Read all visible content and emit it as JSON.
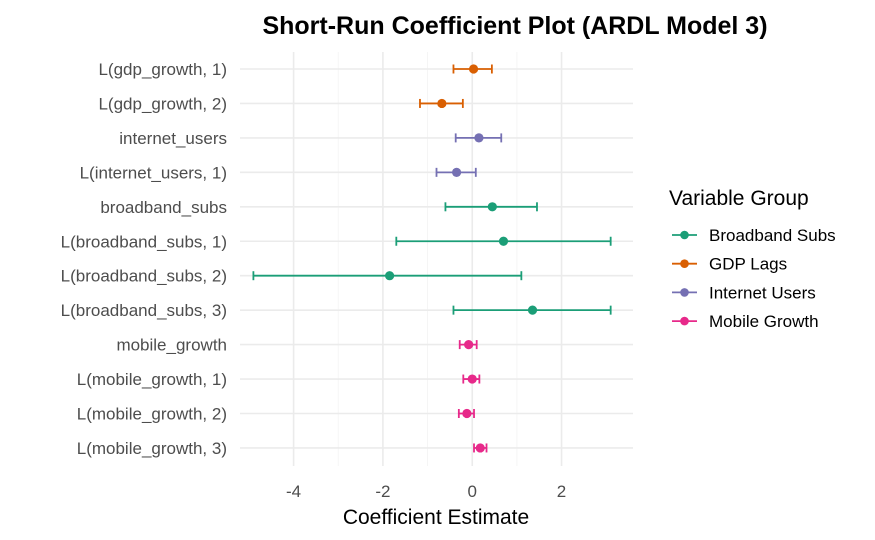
{
  "chart_data": {
    "type": "scatter",
    "title": "Short-Run Coefficient Plot (ARDL Model 3)",
    "xlabel": "Coefficient Estimate",
    "ylabel": "",
    "xlim": [
      -5.2,
      3.6
    ],
    "xticks": [
      -4,
      -2,
      0,
      2
    ],
    "xtick_labels": [
      "-4",
      "-2",
      "0",
      "2"
    ],
    "grid": true,
    "legend": {
      "title": "Variable Group",
      "position": "right",
      "entries": [
        {
          "name": "Broadband Subs",
          "color": "#1b9e77"
        },
        {
          "name": "GDP Lags",
          "color": "#d95f02"
        },
        {
          "name": "Internet Users",
          "color": "#7570b3"
        },
        {
          "name": "Mobile Growth",
          "color": "#e7298a"
        }
      ]
    },
    "terms": [
      {
        "term": "L(gdp_growth, 1)",
        "group": "GDP Lags",
        "estimate": 0.03,
        "lower": -0.42,
        "upper": 0.44
      },
      {
        "term": "L(gdp_growth, 2)",
        "group": "GDP Lags",
        "estimate": -0.68,
        "lower": -1.17,
        "upper": -0.21
      },
      {
        "term": "internet_users",
        "group": "Internet Users",
        "estimate": 0.15,
        "lower": -0.37,
        "upper": 0.65
      },
      {
        "term": "L(internet_users, 1)",
        "group": "Internet Users",
        "estimate": -0.35,
        "lower": -0.8,
        "upper": 0.08
      },
      {
        "term": "broadband_subs",
        "group": "Broadband Subs",
        "estimate": 0.45,
        "lower": -0.6,
        "upper": 1.45
      },
      {
        "term": "L(broadband_subs, 1)",
        "group": "Broadband Subs",
        "estimate": 0.7,
        "lower": -1.7,
        "upper": 3.1
      },
      {
        "term": "L(broadband_subs, 2)",
        "group": "Broadband Subs",
        "estimate": -1.85,
        "lower": -4.9,
        "upper": 1.1
      },
      {
        "term": "L(broadband_subs, 3)",
        "group": "Broadband Subs",
        "estimate": 1.35,
        "lower": -0.42,
        "upper": 3.1
      },
      {
        "term": "mobile_growth",
        "group": "Mobile Growth",
        "estimate": -0.08,
        "lower": -0.28,
        "upper": 0.1
      },
      {
        "term": "L(mobile_growth, 1)",
        "group": "Mobile Growth",
        "estimate": 0.0,
        "lower": -0.2,
        "upper": 0.16
      },
      {
        "term": "L(mobile_growth, 2)",
        "group": "Mobile Growth",
        "estimate": -0.12,
        "lower": -0.3,
        "upper": 0.04
      },
      {
        "term": "L(mobile_growth, 3)",
        "group": "Mobile Growth",
        "estimate": 0.18,
        "lower": 0.04,
        "upper": 0.32
      }
    ]
  }
}
